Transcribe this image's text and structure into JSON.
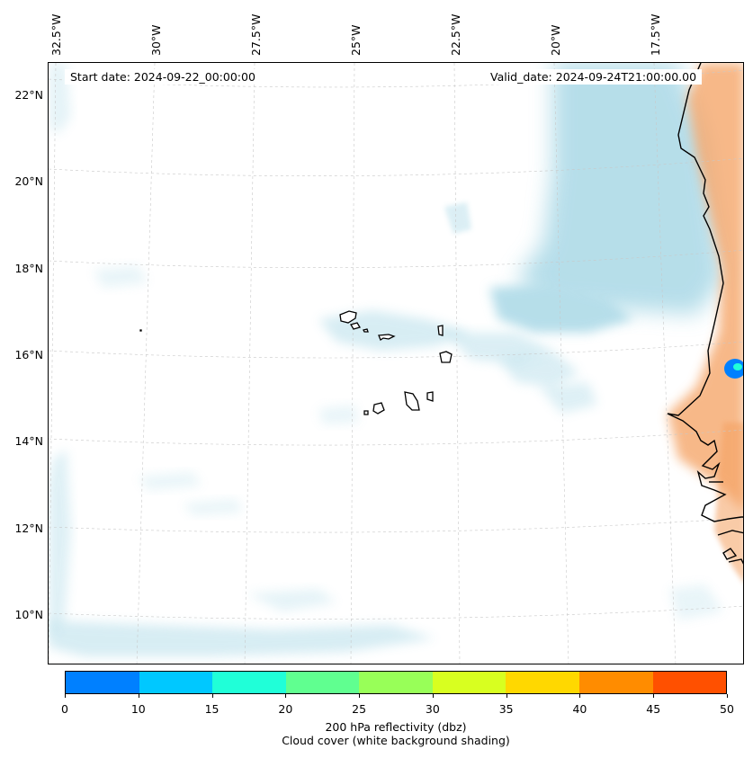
{
  "map": {
    "start_date": "Start date: 2024-09-22_00:00:00",
    "valid_date": "Valid_date: 2024-09-24T21:00:00.00",
    "lon_labels": [
      "32.5°W",
      "30°W",
      "27.5°W",
      "25°W",
      "22.5°W",
      "20°W",
      "17.5°W"
    ],
    "lat_labels": [
      "22°N",
      "20°N",
      "18°N",
      "16°N",
      "14°N",
      "12°N",
      "10°N"
    ],
    "colors": {
      "cloud": "#a9d8e6",
      "dust": "#f4a060",
      "coast": "#000000",
      "grid": "#c8c8c8"
    }
  },
  "colorbar": {
    "ticks": [
      "0",
      "10",
      "15",
      "20",
      "25",
      "30",
      "35",
      "40",
      "45",
      "50"
    ],
    "colors": [
      "#0080ff",
      "#00c8ff",
      "#20ffd8",
      "#60ff90",
      "#98ff58",
      "#d8ff20",
      "#ffd800",
      "#ff8c00",
      "#ff5000"
    ],
    "label_line1": "200 hPa reflectivity (dbz)",
    "label_line2": "Cloud cover (white background shading)"
  }
}
